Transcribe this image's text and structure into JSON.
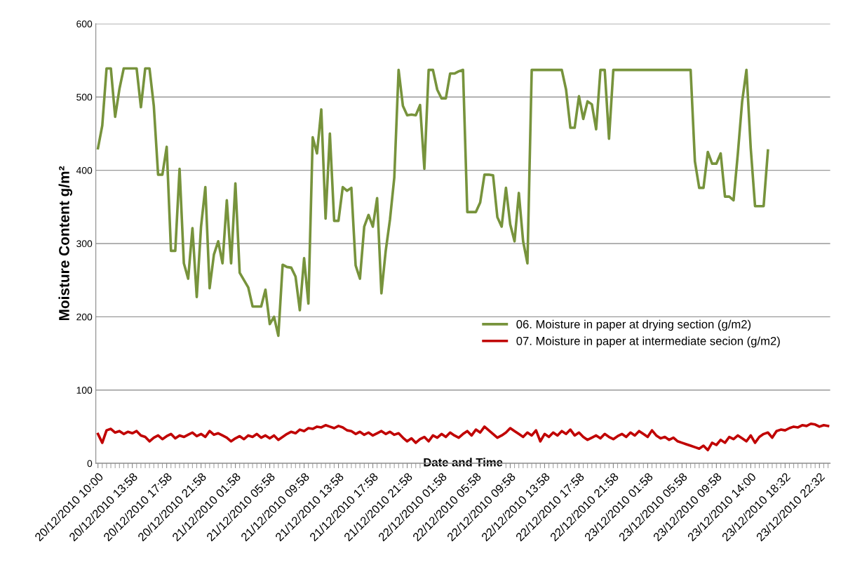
{
  "chart_data": {
    "type": "line",
    "ylabel": "Moisture Content g/m²",
    "xlabel": "Date and Time",
    "categories": [
      "20/12/2010 10:00",
      null,
      null,
      null,
      null,
      null,
      null,
      null,
      "20/12/2010 13:58",
      null,
      null,
      null,
      null,
      null,
      null,
      null,
      "20/12/2010 17:58",
      null,
      null,
      null,
      null,
      null,
      null,
      null,
      "20/12/2010 21:58",
      null,
      null,
      null,
      null,
      null,
      null,
      null,
      "21/12/2010 01:58",
      null,
      null,
      null,
      null,
      null,
      null,
      null,
      "21/12/2010 05:58",
      null,
      null,
      null,
      null,
      null,
      null,
      null,
      "21/12/2010 09:58",
      null,
      null,
      null,
      null,
      null,
      null,
      null,
      "21/12/2010 13:58",
      null,
      null,
      null,
      null,
      null,
      null,
      null,
      "21/12/2010 17:58",
      null,
      null,
      null,
      null,
      null,
      null,
      null,
      "21/12/2010 21:58",
      null,
      null,
      null,
      null,
      null,
      null,
      null,
      "22/12/2010 01:58",
      null,
      null,
      null,
      null,
      null,
      null,
      null,
      "22/12/2010 05:58",
      null,
      null,
      null,
      null,
      null,
      null,
      null,
      "22/12/2010 09:58",
      null,
      null,
      null,
      null,
      null,
      null,
      null,
      "22/12/2010 13:58",
      null,
      null,
      null,
      null,
      null,
      null,
      null,
      "22/12/2010 17:58",
      null,
      null,
      null,
      null,
      null,
      null,
      null,
      "22/12/2010 21:58",
      null,
      null,
      null,
      null,
      null,
      null,
      null,
      "23/12/2010 01:58",
      null,
      null,
      null,
      null,
      null,
      null,
      null,
      "23/12/2010 05:58",
      null,
      null,
      null,
      null,
      null,
      null,
      null,
      "23/12/2010 09:58",
      null,
      null,
      null,
      null,
      null,
      null,
      null,
      "23/12/2010 14:00",
      null,
      null,
      null,
      null,
      null,
      null,
      null,
      "23/12/2010 18:32",
      null,
      null,
      null,
      null,
      null,
      null,
      null,
      "23/12/2010 22:32",
      null,
      null
    ],
    "series": [
      {
        "name": "06. Moisture in paper at drying section (g/m2)",
        "color": "#77933c",
        "values": [
          430,
          461,
          539,
          539,
          473,
          511,
          539,
          539,
          539,
          539,
          486,
          539,
          539,
          488,
          394,
          394,
          432,
          290,
          290,
          402,
          273,
          252,
          321,
          227,
          323,
          377,
          239,
          285,
          303,
          273,
          359,
          273,
          382,
          260,
          250,
          240,
          214,
          214,
          214,
          237,
          190,
          200,
          174,
          271,
          268,
          267,
          255,
          209,
          280,
          218,
          445,
          423,
          483,
          334,
          450,
          331,
          331,
          377,
          372,
          376,
          270,
          252,
          323,
          339,
          323,
          362,
          232,
          290,
          333,
          390,
          537,
          488,
          475,
          476,
          475,
          489,
          402,
          537,
          537,
          510,
          498,
          498,
          532,
          532,
          535,
          537,
          343,
          343,
          343,
          356,
          394,
          394,
          393,
          336,
          323,
          376,
          326,
          303,
          369,
          303,
          273,
          537,
          537,
          537,
          537,
          537,
          537,
          537,
          537,
          510,
          458,
          458,
          501,
          470,
          494,
          490,
          456,
          537,
          537,
          443,
          537,
          537,
          537,
          537,
          537,
          537,
          537,
          537,
          537,
          537,
          537,
          537,
          537,
          537,
          537,
          537,
          537,
          537,
          537,
          412,
          376,
          376,
          425,
          409,
          409,
          423,
          364,
          364,
          359,
          423,
          494,
          537,
          430,
          351,
          351,
          351,
          427,
          null,
          null,
          null,
          null,
          null,
          null,
          null,
          null,
          null,
          null,
          null,
          null,
          null,
          null
        ]
      },
      {
        "name": "07. Moisture in paper at intermediate secion (g/m2)",
        "color": "#c00000",
        "values": [
          40,
          28,
          45,
          47,
          42,
          44,
          40,
          43,
          41,
          44,
          38,
          36,
          30,
          35,
          38,
          33,
          37,
          40,
          34,
          38,
          36,
          39,
          42,
          37,
          40,
          36,
          44,
          39,
          41,
          38,
          35,
          30,
          34,
          37,
          33,
          38,
          36,
          40,
          35,
          38,
          34,
          38,
          32,
          36,
          40,
          43,
          41,
          46,
          44,
          48,
          47,
          50,
          49,
          52,
          50,
          48,
          51,
          49,
          45,
          44,
          40,
          43,
          39,
          42,
          38,
          41,
          44,
          40,
          43,
          39,
          41,
          35,
          30,
          34,
          28,
          33,
          36,
          30,
          38,
          35,
          40,
          36,
          42,
          38,
          35,
          40,
          44,
          38,
          46,
          42,
          50,
          45,
          40,
          35,
          38,
          42,
          48,
          44,
          40,
          36,
          42,
          38,
          45,
          30,
          40,
          36,
          42,
          38,
          44,
          40,
          46,
          38,
          42,
          36,
          32,
          35,
          38,
          34,
          40,
          36,
          33,
          37,
          40,
          36,
          42,
          38,
          44,
          40,
          36,
          45,
          38,
          34,
          36,
          32,
          35,
          30,
          28,
          26,
          24,
          22,
          20,
          24,
          18,
          28,
          25,
          32,
          28,
          36,
          33,
          38,
          34,
          30,
          38,
          28,
          36,
          40,
          42,
          35,
          44,
          46,
          45,
          48,
          50,
          49,
          52,
          51,
          54,
          53,
          50,
          52,
          51
        ]
      }
    ],
    "ylim": [
      0,
      600
    ],
    "yticks": [
      0,
      100,
      200,
      300,
      400,
      500,
      600
    ],
    "grid": "y",
    "legend": "center right",
    "marker": "none",
    "line_style": "solid"
  }
}
